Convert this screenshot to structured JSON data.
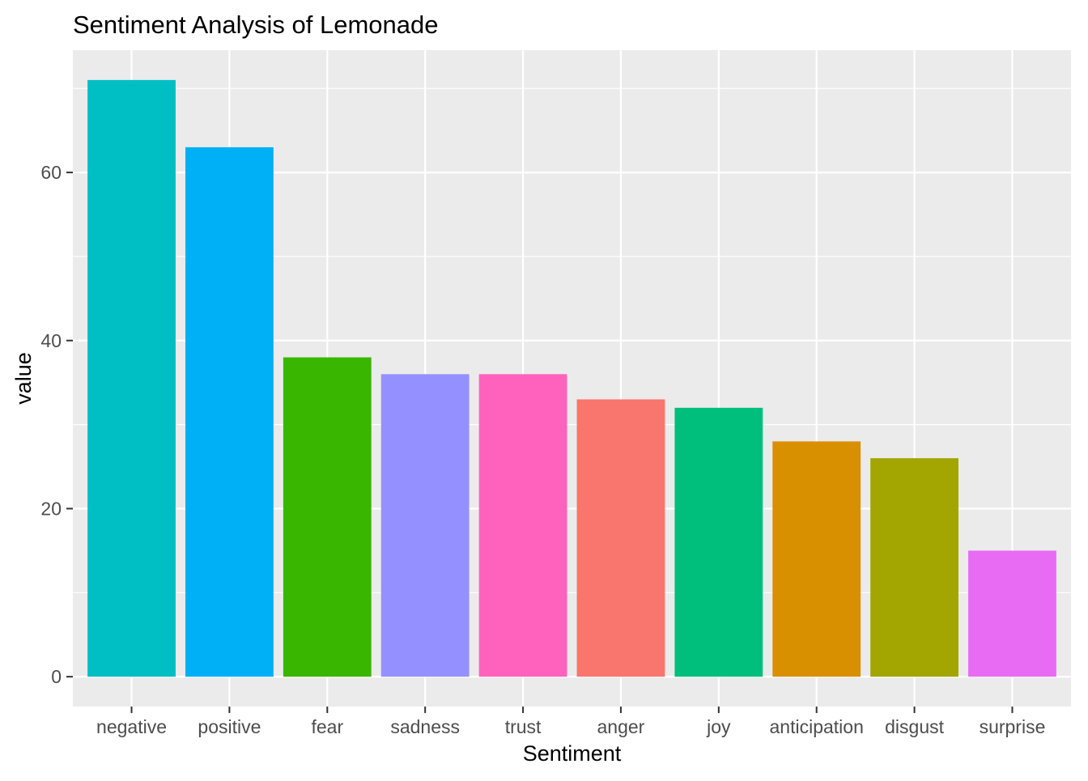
{
  "chart_data": {
    "type": "bar",
    "title": "Sentiment Analysis of Lemonade",
    "xlabel": "Sentiment",
    "ylabel": "value",
    "categories": [
      "negative",
      "positive",
      "fear",
      "sadness",
      "trust",
      "anger",
      "joy",
      "anticipation",
      "disgust",
      "surprise"
    ],
    "values": [
      71,
      63,
      38,
      36,
      36,
      33,
      32,
      28,
      26,
      15
    ],
    "colors": [
      "#00BFC4",
      "#00B0F6",
      "#39B600",
      "#9590FF",
      "#FF62BC",
      "#F8766D",
      "#00BF7D",
      "#D89000",
      "#A3A500",
      "#E76BF3"
    ],
    "ylim": [
      -3.55,
      74.55
    ],
    "yticks": [
      0,
      20,
      40,
      60
    ],
    "grid": true,
    "legend": "none",
    "panel_background": "#EBEBEB",
    "grid_color": "#FFFFFF"
  }
}
